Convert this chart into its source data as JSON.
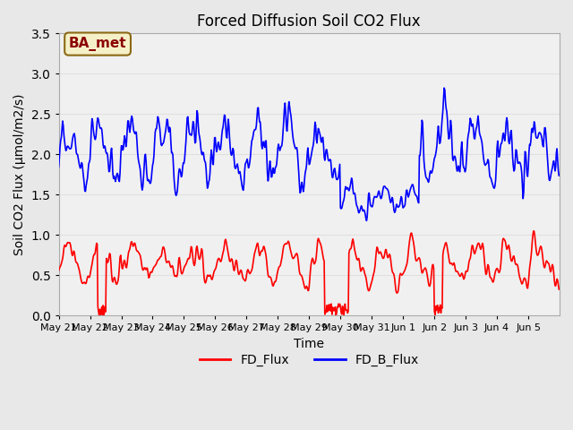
{
  "title": "Forced Diffusion Soil CO2 Flux",
  "xlabel": "Time",
  "ylabel": "Soil CO2 Flux (μmol/m2/s)",
  "ylim": [
    0.0,
    3.5
  ],
  "annotation_text": "BA_met",
  "annotation_color": "#8B0000",
  "annotation_bg": "#f5f0c8",
  "annotation_border": "#8B6914",
  "fd_flux_color": "red",
  "fd_b_flux_color": "blue",
  "fd_flux_label": "FD_Flux",
  "fd_b_flux_label": "FD_B_Flux",
  "grid_color": "#e0e0e0",
  "bg_color": "#e8e8e8",
  "plot_bg_color": "#f0f0f0",
  "line_width": 1.2,
  "seed": 42
}
